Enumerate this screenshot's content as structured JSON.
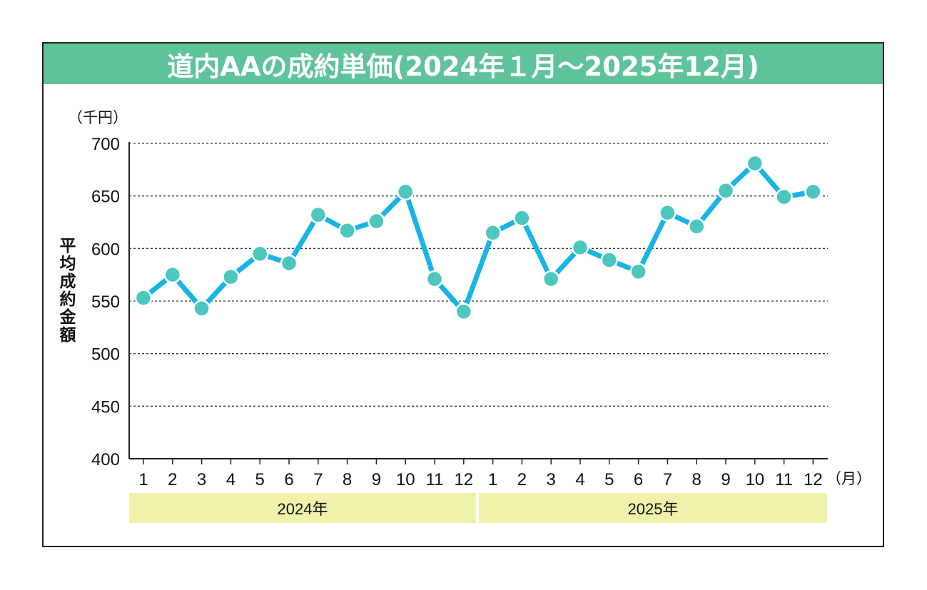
{
  "title": "道内AAの成約単価(2024年１月～2025年12月)",
  "colors": {
    "title_bg": "#5fc39a",
    "line": "#19b4e6",
    "marker": "#4cc7bd",
    "year_band": "#eef2ab"
  },
  "chart_data": {
    "type": "line",
    "title": "道内AAの成約単価(2024年１月～2025年12月)",
    "ylabel": "平均成約金額",
    "yunit": "（千円）",
    "xunit": "（月）",
    "ylim": [
      400,
      700
    ],
    "yticks": [
      400,
      450,
      500,
      550,
      600,
      650,
      700
    ],
    "grid": true,
    "x": [
      "1",
      "2",
      "3",
      "4",
      "5",
      "6",
      "7",
      "8",
      "9",
      "10",
      "11",
      "12",
      "1",
      "2",
      "3",
      "4",
      "5",
      "6",
      "7",
      "8",
      "9",
      "10",
      "11",
      "12"
    ],
    "groups": [
      {
        "label": "2024年",
        "months": 12
      },
      {
        "label": "2025年",
        "months": 12
      }
    ],
    "series": [
      {
        "values": [
          553,
          575,
          543,
          573,
          595,
          586,
          632,
          617,
          626,
          654,
          571,
          540,
          615,
          629,
          571,
          601,
          589,
          578,
          634,
          621,
          655,
          681,
          649,
          654
        ]
      }
    ]
  }
}
